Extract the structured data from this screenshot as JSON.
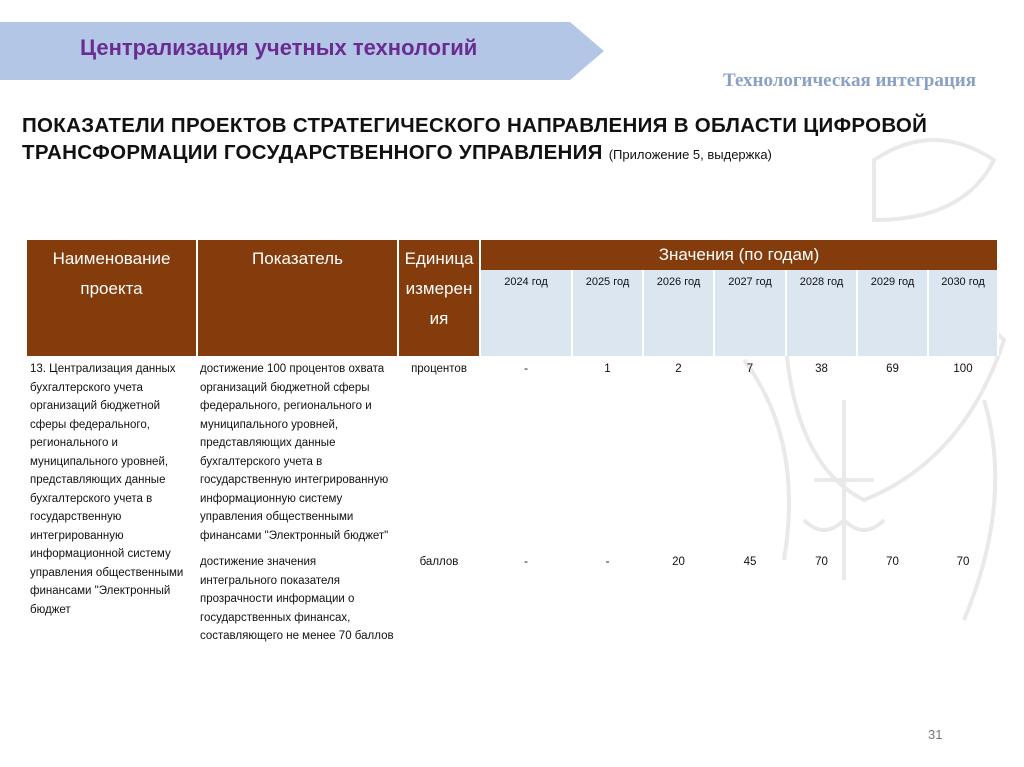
{
  "header": {
    "banner": "Централизация учетных технологий",
    "subtitle": "Технологическая интеграция"
  },
  "title": {
    "main": "ПОКАЗАТЕЛИ ПРОЕКТОВ СТРАТЕГИЧЕСКОГО НАПРАВЛЕНИЯ В ОБЛАСТИ ЦИФРОВОЙ ТРАНСФОРМАЦИИ ГОСУДАРСТВЕННОГО УПРАВЛЕНИЯ",
    "note": "(Приложение 5, выдержка)"
  },
  "table": {
    "headers": {
      "project": "Наименование проекта",
      "indicator": "Показатель",
      "unit": "Единица измерения",
      "values": "Значения (по годам)"
    },
    "years": [
      "2024 год",
      "2025 год",
      "2026 год",
      "2027 год",
      "2028 год",
      "2029 год",
      "2030 год"
    ],
    "project": "13. Централизация данных бухгалтерского учета организаций бюджетной сферы федерального, регионального и муниципального уровней, представляющих данные бухгалтерского учета в государственную интегрированную информационной систему управления общественными финансами \"Электронный бюджет",
    "rows": [
      {
        "indicator": "достижение 100 процентов охвата организаций бюджетной сферы федерального, регионального и муниципального уровней, представляющих данные бухгалтерского учета в государственную интегрированную информационную систему управления общественными финансами \"Электронный бюджет\"",
        "unit": "процентов",
        "values": [
          "-",
          "1",
          "2",
          "7",
          "38",
          "69",
          "100"
        ]
      },
      {
        "indicator": "достижение значения интегрального показателя прозрачности информации о государственных финансах, составляющего не менее 70 баллов",
        "unit": "баллов",
        "values": [
          "-",
          "-",
          "20",
          "45",
          "70",
          "70",
          "70"
        ]
      }
    ]
  },
  "footer": {
    "page": "31"
  }
}
